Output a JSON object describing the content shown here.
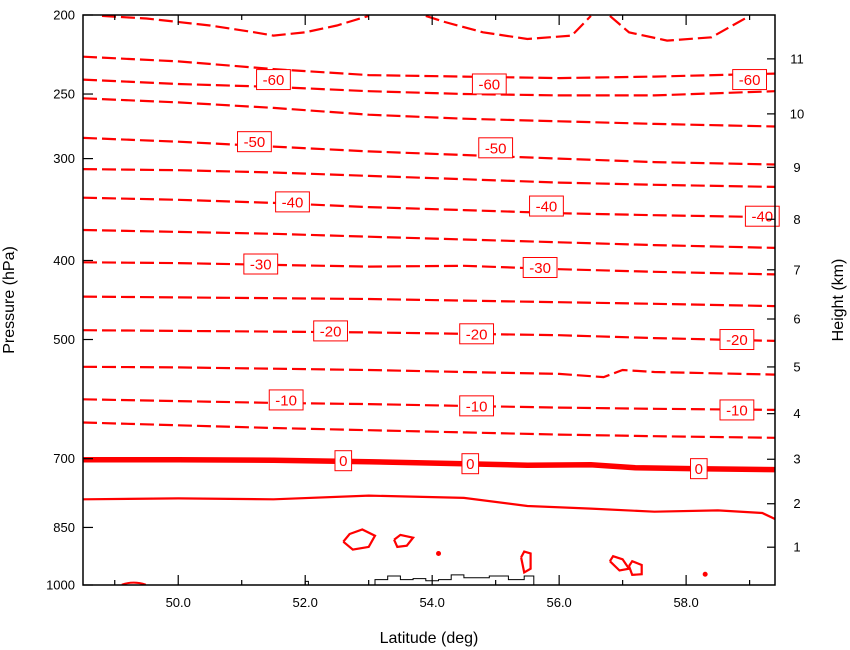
{
  "chart_data": {
    "type": "contour",
    "title": "",
    "xlabel": "Latitude (deg)",
    "ylabel": "Pressure (hPa)",
    "y2label": "Height (km)",
    "xlim": [
      48.5,
      59.4
    ],
    "ylim": [
      1000,
      200
    ],
    "y_scale": "log",
    "line_color": "#ff0000",
    "x_ticks": [
      50,
      52,
      54,
      56,
      58
    ],
    "x_tick_labels": [
      "50.0",
      "52.0",
      "54.0",
      "56.0",
      "58.0"
    ],
    "y_ticks": [
      1000,
      850,
      700,
      500,
      400,
      300,
      250,
      200
    ],
    "y_tick_labels": [
      "1000",
      "850",
      "700",
      "500",
      "400",
      "300",
      "250",
      "200"
    ],
    "y2_ticks": [
      1,
      2,
      3,
      4,
      5,
      6,
      7,
      8,
      9,
      10,
      11
    ],
    "y2_tick_labels": [
      "1",
      "2",
      "3",
      "4",
      "5",
      "6",
      "7",
      "8",
      "9",
      "10",
      "11"
    ],
    "contour_interval": 5,
    "contours": [
      {
        "level": -70,
        "style": "dashed",
        "points": [
          [
            48.8,
            200.5
          ],
          [
            49.5,
            202
          ],
          [
            50.5,
            206
          ],
          [
            51.2,
            210
          ],
          [
            51.5,
            212
          ],
          [
            52,
            210
          ],
          [
            52.5,
            206
          ],
          [
            53,
            200.5
          ]
        ]
      },
      {
        "level": -70,
        "style": "dashed",
        "points": [
          [
            53.9,
            200.5
          ],
          [
            54.2,
            204
          ],
          [
            54.8,
            210
          ],
          [
            55.5,
            214
          ],
          [
            56.2,
            212
          ],
          [
            56.5,
            200.5
          ]
        ]
      },
      {
        "level": -70,
        "style": "dashed",
        "points": [
          [
            56.8,
            200.5
          ],
          [
            57.1,
            210
          ],
          [
            57.7,
            215
          ],
          [
            58.4,
            213
          ],
          [
            59,
            200.5
          ]
        ]
      },
      {
        "level": -65,
        "style": "dashed",
        "points": [
          [
            48.5,
            225
          ],
          [
            50,
            228
          ],
          [
            51.5,
            233
          ],
          [
            53,
            237
          ],
          [
            54.5,
            238
          ],
          [
            56,
            239
          ],
          [
            57.5,
            238
          ],
          [
            59.4,
            236
          ]
        ]
      },
      {
        "level": -60,
        "style": "dashed",
        "points": [
          [
            48.5,
            240
          ],
          [
            50,
            243
          ],
          [
            51.5,
            245
          ],
          [
            53,
            248
          ],
          [
            54.5,
            250
          ],
          [
            56,
            251
          ],
          [
            57.5,
            251
          ],
          [
            59.4,
            248
          ]
        ]
      },
      {
        "level": -55,
        "style": "dashed",
        "points": [
          [
            48.5,
            253
          ],
          [
            50,
            256
          ],
          [
            51.5,
            260
          ],
          [
            53,
            265
          ],
          [
            54.5,
            268
          ],
          [
            56,
            270
          ],
          [
            57.5,
            272
          ],
          [
            59.4,
            274
          ]
        ]
      },
      {
        "level": -50,
        "style": "dashed",
        "points": [
          [
            48.5,
            283
          ],
          [
            50,
            286
          ],
          [
            51.5,
            290
          ],
          [
            53,
            294
          ],
          [
            54.5,
            297
          ],
          [
            56,
            300
          ],
          [
            57.5,
            303
          ],
          [
            59.4,
            305
          ]
        ]
      },
      {
        "level": -45,
        "style": "dashed",
        "points": [
          [
            48.5,
            309
          ],
          [
            50,
            310
          ],
          [
            51.5,
            312
          ],
          [
            53,
            315
          ],
          [
            54.5,
            318
          ],
          [
            56,
            321
          ],
          [
            57.5,
            323
          ],
          [
            59.4,
            325
          ]
        ]
      },
      {
        "level": -40,
        "style": "dashed",
        "points": [
          [
            48.5,
            335
          ],
          [
            50,
            337
          ],
          [
            51.5,
            340
          ],
          [
            53,
            344
          ],
          [
            54.5,
            347
          ],
          [
            56,
            350
          ],
          [
            57.5,
            352
          ],
          [
            59.4,
            354
          ]
        ]
      },
      {
        "level": -35,
        "style": "dashed",
        "points": [
          [
            48.5,
            367
          ],
          [
            50,
            369
          ],
          [
            51.5,
            371
          ],
          [
            53,
            374
          ],
          [
            54.5,
            377
          ],
          [
            56,
            380
          ],
          [
            57.5,
            383
          ],
          [
            59.4,
            386
          ]
        ]
      },
      {
        "level": -30,
        "style": "dashed",
        "points": [
          [
            48.5,
            402
          ],
          [
            50,
            403
          ],
          [
            51.5,
            405
          ],
          [
            53,
            407
          ],
          [
            54.5,
            406
          ],
          [
            56,
            410
          ],
          [
            57.5,
            413
          ],
          [
            59.4,
            416
          ]
        ]
      },
      {
        "level": -25,
        "style": "dashed",
        "points": [
          [
            48.5,
            443
          ],
          [
            50,
            444
          ],
          [
            51.5,
            445
          ],
          [
            53,
            446
          ],
          [
            54.5,
            448
          ],
          [
            56,
            450
          ],
          [
            57.5,
            452
          ],
          [
            59.4,
            455
          ]
        ]
      },
      {
        "level": -20,
        "style": "dashed",
        "points": [
          [
            48.5,
            487
          ],
          [
            50,
            488
          ],
          [
            51.5,
            489
          ],
          [
            53,
            490
          ],
          [
            54.5,
            492
          ],
          [
            56,
            494
          ],
          [
            57.5,
            498
          ],
          [
            59.4,
            502
          ]
        ]
      },
      {
        "level": -15,
        "style": "dashed",
        "points": [
          [
            48.5,
            540
          ],
          [
            50,
            541
          ],
          [
            51.5,
            543
          ],
          [
            53,
            545
          ],
          [
            54.5,
            548
          ],
          [
            56,
            551
          ],
          [
            56.7,
            556
          ],
          [
            57,
            545
          ],
          [
            57.5,
            548
          ],
          [
            59.4,
            552
          ]
        ]
      },
      {
        "level": -10,
        "style": "dashed",
        "points": [
          [
            48.5,
            592
          ],
          [
            50,
            595
          ],
          [
            51.5,
            598
          ],
          [
            53,
            600
          ],
          [
            54.5,
            603
          ],
          [
            56,
            606
          ],
          [
            57.5,
            608
          ],
          [
            59.4,
            610
          ]
        ]
      },
      {
        "level": -5,
        "style": "dashed",
        "points": [
          [
            48.5,
            632
          ],
          [
            50,
            637
          ],
          [
            51.5,
            642
          ],
          [
            53,
            646
          ],
          [
            54.5,
            650
          ],
          [
            56,
            654
          ],
          [
            57.5,
            657
          ],
          [
            59.4,
            660
          ]
        ]
      },
      {
        "level": 0,
        "style": "bold",
        "points": [
          [
            48.5,
            702
          ],
          [
            50,
            702
          ],
          [
            51.5,
            703
          ],
          [
            53,
            706
          ],
          [
            54.5,
            710
          ],
          [
            55.5,
            713
          ],
          [
            56.5,
            712
          ],
          [
            57.2,
            718
          ],
          [
            58.2,
            720
          ],
          [
            59.4,
            722
          ]
        ]
      },
      {
        "level": 5,
        "style": "solid",
        "points": [
          [
            48.5,
            785
          ],
          [
            50,
            783
          ],
          [
            51.5,
            785
          ],
          [
            53,
            777
          ],
          [
            54.5,
            782
          ],
          [
            55.5,
            800
          ],
          [
            56.5,
            806
          ],
          [
            57.5,
            813
          ],
          [
            58.5,
            810
          ],
          [
            59.2,
            816
          ],
          [
            59.4,
            830
          ]
        ]
      },
      {
        "level": 5,
        "style": "solid",
        "points": [
          [
            52.6,
            885
          ],
          [
            52.7,
            866
          ],
          [
            52.9,
            855
          ],
          [
            53.1,
            870
          ],
          [
            53.0,
            898
          ],
          [
            52.75,
            905
          ],
          [
            52.6,
            885
          ]
        ]
      },
      {
        "level": 5,
        "style": "solid",
        "points": [
          [
            53.4,
            880
          ],
          [
            53.5,
            868
          ],
          [
            53.7,
            875
          ],
          [
            53.6,
            895
          ],
          [
            53.45,
            898
          ],
          [
            53.4,
            880
          ]
        ]
      },
      {
        "level": 5,
        "style": "solid",
        "points": [
          [
            55.4,
            925
          ],
          [
            55.45,
            910
          ],
          [
            55.55,
            915
          ],
          [
            55.55,
            955
          ],
          [
            55.45,
            965
          ],
          [
            55.4,
            925
          ]
        ]
      },
      {
        "level": 5,
        "style": "solid",
        "points": [
          [
            56.8,
            935
          ],
          [
            56.85,
            922
          ],
          [
            57.0,
            930
          ],
          [
            57.1,
            955
          ],
          [
            56.95,
            960
          ],
          [
            56.8,
            935
          ]
        ]
      },
      {
        "level": 5,
        "style": "solid",
        "points": [
          [
            57.1,
            948
          ],
          [
            57.15,
            935
          ],
          [
            57.3,
            945
          ],
          [
            57.3,
            970
          ],
          [
            57.15,
            972
          ],
          [
            57.1,
            948
          ]
        ]
      }
    ],
    "contour_labels": [
      {
        "text": "-60",
        "x": 51.5,
        "y": 240
      },
      {
        "text": "-60",
        "x": 54.9,
        "y": 243
      },
      {
        "text": "-60",
        "x": 59.0,
        "y": 240
      },
      {
        "text": "-50",
        "x": 51.2,
        "y": 286
      },
      {
        "text": "-50",
        "x": 55.0,
        "y": 291
      },
      {
        "text": "-40",
        "x": 51.8,
        "y": 339
      },
      {
        "text": "-40",
        "x": 55.8,
        "y": 343
      },
      {
        "text": "-40",
        "x": 59.2,
        "y": 353
      },
      {
        "text": "-30",
        "x": 51.3,
        "y": 404
      },
      {
        "text": "-30",
        "x": 55.7,
        "y": 408
      },
      {
        "text": "-20",
        "x": 52.4,
        "y": 488
      },
      {
        "text": "-20",
        "x": 54.7,
        "y": 492
      },
      {
        "text": "-20",
        "x": 58.8,
        "y": 500
      },
      {
        "text": "-10",
        "x": 51.7,
        "y": 593
      },
      {
        "text": "-10",
        "x": 54.7,
        "y": 603
      },
      {
        "text": "-10",
        "x": 58.8,
        "y": 610
      },
      {
        "text": "0",
        "x": 52.6,
        "y": 704
      },
      {
        "text": "0",
        "x": 54.6,
        "y": 710
      },
      {
        "text": "0",
        "x": 58.2,
        "y": 720
      }
    ],
    "terrain": [
      [
        53.1,
        1000
      ],
      [
        53.1,
        985
      ],
      [
        53.3,
        985
      ],
      [
        53.3,
        975
      ],
      [
        53.5,
        975
      ],
      [
        53.5,
        985
      ],
      [
        53.7,
        985
      ],
      [
        53.7,
        982
      ],
      [
        53.9,
        982
      ],
      [
        53.9,
        988
      ],
      [
        54.1,
        988
      ],
      [
        54.1,
        985
      ],
      [
        54.3,
        985
      ],
      [
        54.3,
        972
      ],
      [
        54.5,
        972
      ],
      [
        54.5,
        980
      ],
      [
        54.9,
        980
      ],
      [
        54.9,
        975
      ],
      [
        55.2,
        975
      ],
      [
        55.2,
        985
      ],
      [
        55.45,
        985
      ],
      [
        55.45,
        975
      ],
      [
        55.6,
        975
      ],
      [
        55.6,
        1000
      ]
    ],
    "terrain_small": [
      [
        52.0,
        1000
      ],
      [
        52.0,
        990
      ],
      [
        52.05,
        990
      ],
      [
        52.05,
        1000
      ]
    ],
    "markers": [
      {
        "type": "arc",
        "x": 49.3,
        "y": 999
      },
      {
        "type": "dot",
        "x": 54.1,
        "y": 915
      },
      {
        "type": "dot",
        "x": 58.3,
        "y": 970
      }
    ]
  }
}
